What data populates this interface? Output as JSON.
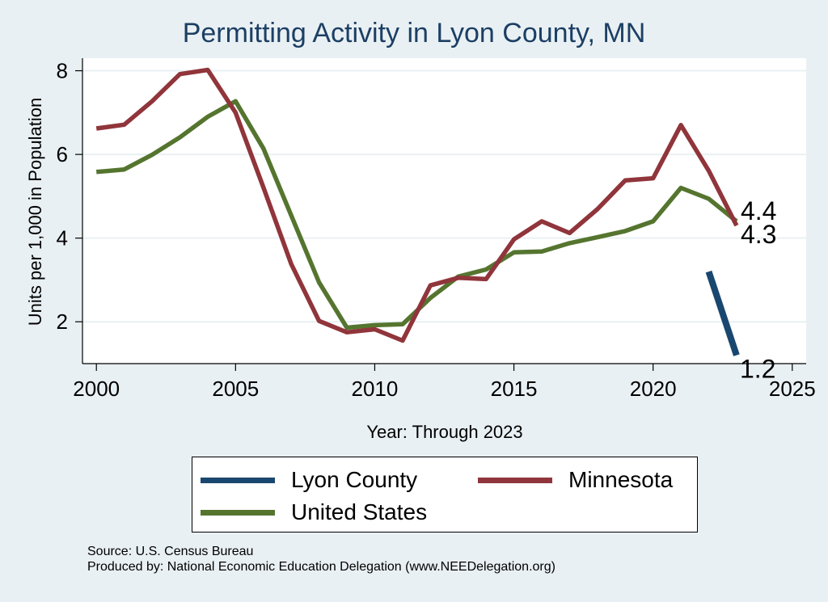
{
  "chart_data": {
    "type": "line",
    "title": "Permitting Activity in Lyon County, MN",
    "xlabel": "Year: Through 2023",
    "ylabel": "Units per 1,000 in Population",
    "xlim": [
      1999.5,
      2025.5
    ],
    "ylim": [
      1.0,
      8.3
    ],
    "xticks": [
      2000,
      2005,
      2010,
      2015,
      2020,
      2025
    ],
    "yticks": [
      2,
      4,
      6,
      8
    ],
    "grid": true,
    "series": [
      {
        "name": "Lyon County",
        "color": "#1a476f",
        "x": [
          2022,
          2023
        ],
        "values": [
          3.2,
          1.2
        ]
      },
      {
        "name": "Minnesota",
        "color": "#90353b",
        "x": [
          2000,
          2001,
          2002,
          2003,
          2004,
          2005,
          2006,
          2007,
          2008,
          2009,
          2010,
          2011,
          2012,
          2013,
          2014,
          2015,
          2016,
          2017,
          2018,
          2019,
          2020,
          2021,
          2022,
          2023
        ],
        "values": [
          6.62,
          6.71,
          7.27,
          7.92,
          8.02,
          7.0,
          5.21,
          3.38,
          2.02,
          1.75,
          1.82,
          1.55,
          2.87,
          3.05,
          3.02,
          3.97,
          4.4,
          4.12,
          4.69,
          5.38,
          5.43,
          6.7,
          5.61,
          4.3
        ]
      },
      {
        "name": "United States",
        "color": "#55752f",
        "x": [
          2000,
          2001,
          2002,
          2003,
          2004,
          2005,
          2006,
          2007,
          2008,
          2009,
          2010,
          2011,
          2012,
          2013,
          2014,
          2015,
          2016,
          2017,
          2018,
          2019,
          2020,
          2021,
          2022,
          2023
        ],
        "values": [
          5.58,
          5.64,
          5.99,
          6.41,
          6.9,
          7.27,
          6.14,
          4.54,
          2.94,
          1.86,
          1.92,
          1.94,
          2.57,
          3.08,
          3.25,
          3.66,
          3.68,
          3.88,
          4.02,
          4.17,
          4.4,
          5.2,
          4.94,
          4.4
        ]
      }
    ],
    "end_labels": [
      {
        "series": "United States",
        "text": "4.4"
      },
      {
        "series": "Minnesota",
        "text": "4.3"
      },
      {
        "series": "Lyon County",
        "text": "1.2"
      }
    ],
    "legend": {
      "position": "bottom",
      "items": [
        "Lyon County",
        "Minnesota",
        "United States"
      ]
    }
  },
  "notes": {
    "source": "Source: U.S. Census Bureau",
    "produced_by": "Produced by: National Economic Education Delegation (www.NEEDelegation.org)"
  }
}
